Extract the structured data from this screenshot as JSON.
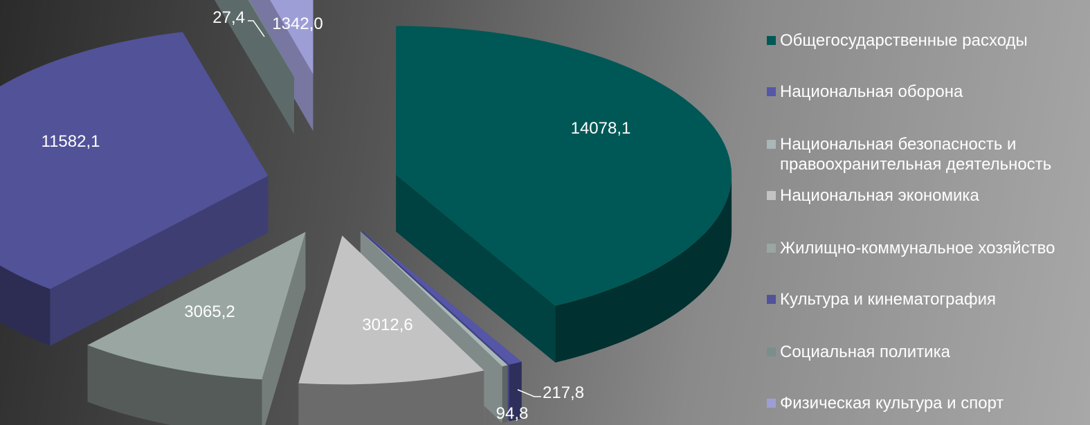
{
  "chart_data": {
    "type": "pie",
    "title": "",
    "series": [
      {
        "name": "Общегосударственные расходы",
        "value": 14078.1,
        "label": "14078,1",
        "color": "#005856"
      },
      {
        "name": "Национальная оборона",
        "value": 217.8,
        "label": "217,8",
        "color": "#5656a8"
      },
      {
        "name": "Национальная безопасность и\nправоохранительная деятельность",
        "value": 94.8,
        "label": "94,8",
        "color": "#a9b8b6"
      },
      {
        "name": "Национальная экономика",
        "value": 3012.6,
        "label": "3012,6",
        "color": "#c3c3c3"
      },
      {
        "name": "Жилищно-коммунальное хозяйство",
        "value": 3065.2,
        "label": "3065,2",
        "color": "#9aa6a2"
      },
      {
        "name": "Культура и кинематография",
        "value": 11582.1,
        "label": "11582,1",
        "color": "#525299"
      },
      {
        "name": "Социальная политика",
        "value": 27.4,
        "label": "27,4",
        "color": "#7a8f8c"
      },
      {
        "name": "Физическая культура и спорт",
        "value": 1342.0,
        "label": "1342,0",
        "color": "#9e9ed6"
      }
    ],
    "legend_position": "right",
    "exploded": true,
    "style": "3d"
  }
}
